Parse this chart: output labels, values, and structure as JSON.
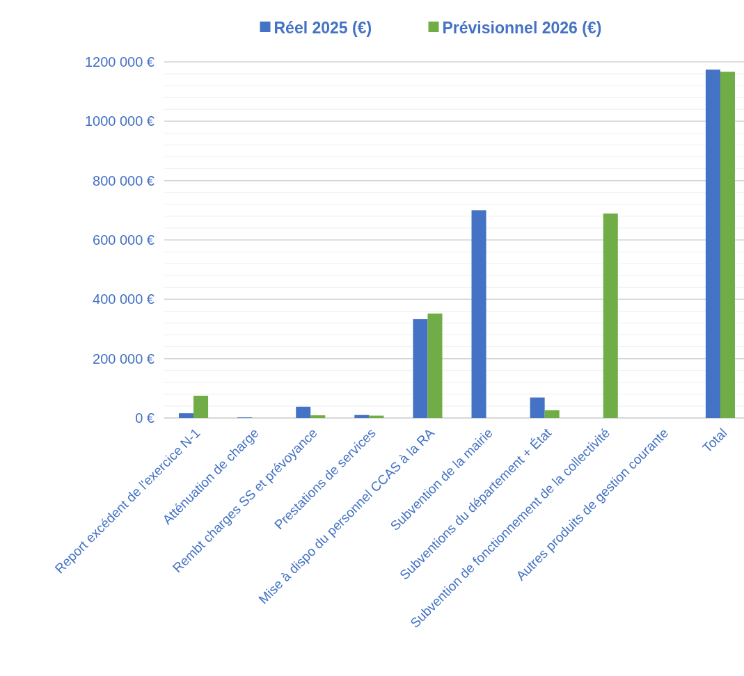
{
  "chart_data": {
    "type": "bar",
    "categories": [
      "Report excédent de l'exercice N-1",
      "Atténuation de charge",
      "Rembt charges SS et prévoyance",
      "Prestations de services",
      "Mise à dispo du personnel CCAS à la RA",
      "Subvention de la mairie",
      "Subventions du département + État",
      "Subvention de fonctionnement de la collectivité",
      "Autres produits de gestion courante",
      "Total"
    ],
    "series": [
      {
        "name": "Réel 2025 (€)",
        "color": "#4472c4",
        "values": [
          16000,
          2000,
          38000,
          10000,
          333000,
          700000,
          69000,
          0,
          null,
          1174000
        ]
      },
      {
        "name": "Prévisionnel 2026 (€)",
        "color": "#70ad47",
        "values": [
          75000,
          null,
          9000,
          8000,
          352000,
          0,
          26000,
          689000,
          null,
          1167000
        ]
      }
    ],
    "ylim": [
      0,
      1200000
    ],
    "yticks": [
      {
        "value": 0,
        "label": "0 €"
      },
      {
        "value": 40000,
        "label": null
      },
      {
        "value": 80000,
        "label": null
      },
      {
        "value": 120000,
        "label": null
      },
      {
        "value": 160000,
        "label": null
      },
      {
        "value": 200000,
        "label": "200 000 €"
      },
      {
        "value": 240000,
        "label": null
      },
      {
        "value": 280000,
        "label": null
      },
      {
        "value": 320000,
        "label": null
      },
      {
        "value": 360000,
        "label": null
      },
      {
        "value": 400000,
        "label": "400 000 €"
      },
      {
        "value": 440000,
        "label": null
      },
      {
        "value": 480000,
        "label": null
      },
      {
        "value": 520000,
        "label": null
      },
      {
        "value": 560000,
        "label": null
      },
      {
        "value": 600000,
        "label": "600 000 €"
      },
      {
        "value": 640000,
        "label": null
      },
      {
        "value": 680000,
        "label": null
      },
      {
        "value": 720000,
        "label": null
      },
      {
        "value": 760000,
        "label": null
      },
      {
        "value": 800000,
        "label": "800 000 €"
      },
      {
        "value": 840000,
        "label": null
      },
      {
        "value": 880000,
        "label": null
      },
      {
        "value": 920000,
        "label": null
      },
      {
        "value": 960000,
        "label": null
      },
      {
        "value": 1000000,
        "label": "1000 000 €"
      },
      {
        "value": 1040000,
        "label": null
      },
      {
        "value": 1080000,
        "label": null
      },
      {
        "value": 1120000,
        "label": null
      },
      {
        "value": 1160000,
        "label": null
      },
      {
        "value": 1200000,
        "label": "1200 000 €"
      }
    ],
    "grid": "y",
    "legend": "top"
  }
}
